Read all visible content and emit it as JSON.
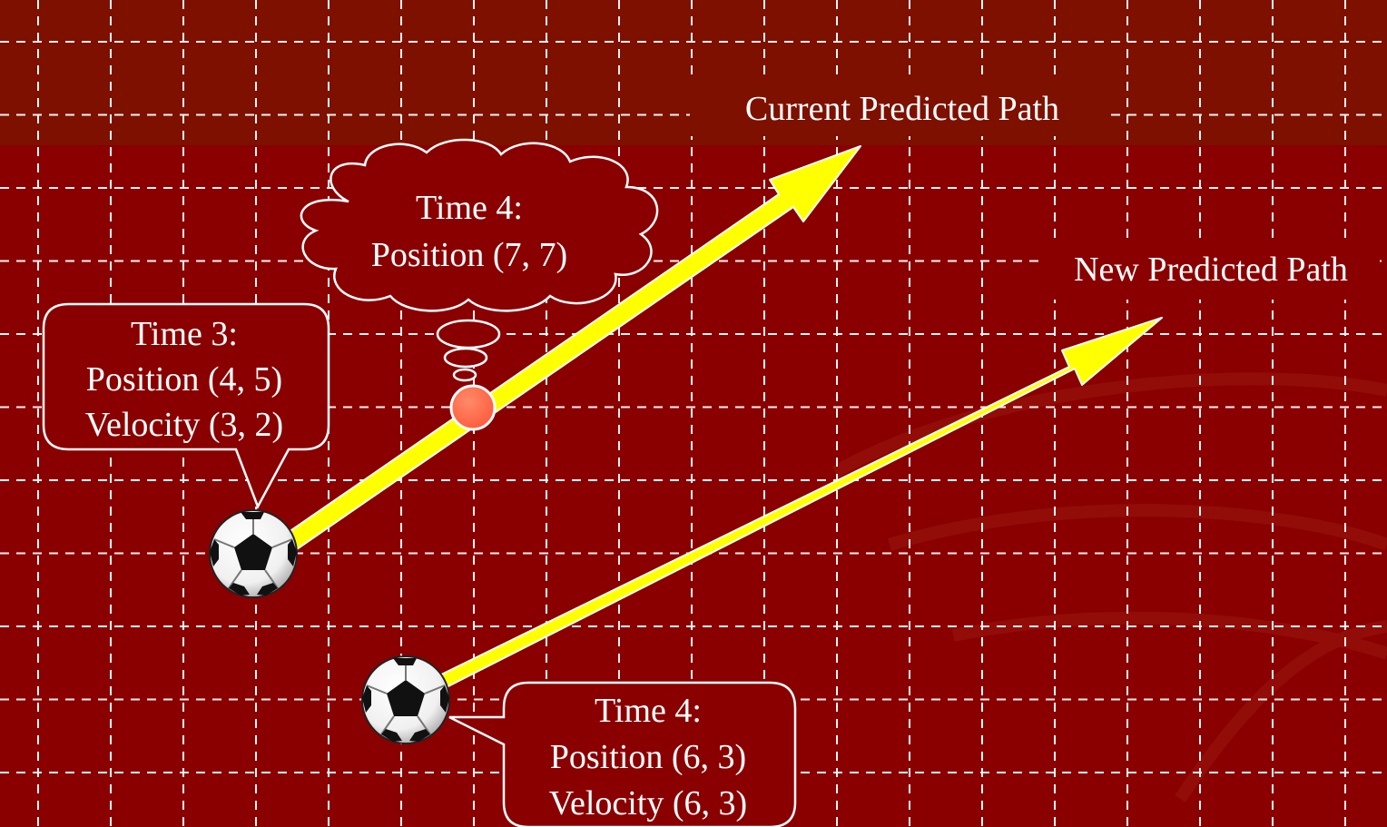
{
  "colors": {
    "background": "#8a0000",
    "band": "#7e1000",
    "grid": "#ffffff",
    "arrow": "#ffff00",
    "callout_fill": "#8a0000",
    "callout_stroke": "#ffffff",
    "predicted_point": "#ff6a4a"
  },
  "paths": {
    "current_label": "Current Predicted Path",
    "new_label": "New Predicted Path"
  },
  "callouts": {
    "time3": {
      "line1": "Time 3:",
      "line2": "Position (4, 5)",
      "line3": "Velocity (3, 2)"
    },
    "time4_predicted": {
      "line1": "Time 4:",
      "line2": "Position (7, 7)"
    },
    "time4_actual": {
      "line1": "Time 4:",
      "line2": "Position (6, 3)",
      "line3": "Velocity (6, 3)"
    }
  },
  "icons": {
    "ball": "soccer-ball-icon",
    "thought": "thought-cloud-icon",
    "point": "predicted-point-icon"
  }
}
